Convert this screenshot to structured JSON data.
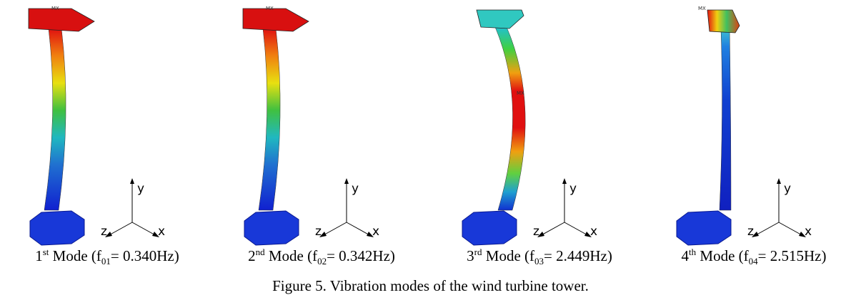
{
  "figure": {
    "panels": [
      {
        "marker": "MX",
        "caption": {
          "number": "1",
          "ordinal": "st",
          "prefix": " Mode (f",
          "subscript": "01",
          "suffix": "= 0.340Hz)"
        },
        "axes": {
          "y": "y",
          "z": "z",
          "x": "x"
        }
      },
      {
        "marker": "MX",
        "caption": {
          "number": "2",
          "ordinal": "nd",
          "prefix": " Mode (f",
          "subscript": "02",
          "suffix": "= 0.342Hz)"
        },
        "axes": {
          "y": "y",
          "z": "z",
          "x": "x"
        }
      },
      {
        "marker": "MX",
        "caption": {
          "number": "3",
          "ordinal": "rd",
          "prefix": " Mode (f",
          "subscript": "03",
          "suffix": "= 2.449Hz)"
        },
        "axes": {
          "y": "y",
          "z": "z",
          "x": "x"
        }
      },
      {
        "marker": "MX",
        "caption": {
          "number": "4",
          "ordinal": "th",
          "prefix": " Mode (f",
          "subscript": "04",
          "suffix": "= 2.515Hz)"
        },
        "axes": {
          "y": "y",
          "z": "z",
          "x": "x"
        }
      }
    ],
    "caption": "Figure 5. Vibration modes of the wind turbine tower."
  }
}
